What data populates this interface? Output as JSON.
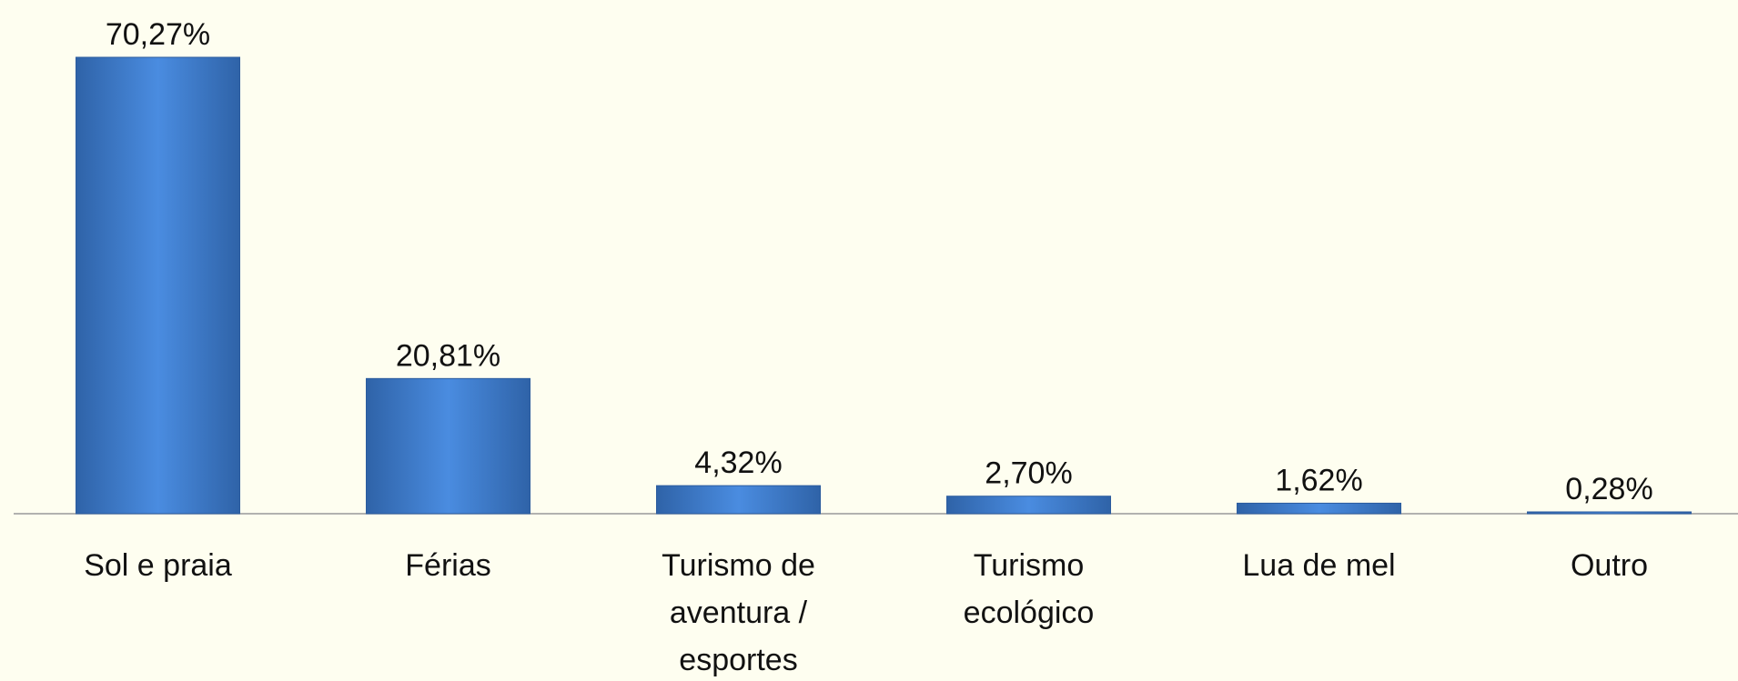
{
  "chart_data": {
    "type": "bar",
    "categories": [
      "Sol e praia",
      "Férias",
      "Turismo de aventura / esportes",
      "Turismo ecológico",
      "Lua de mel",
      "Outro"
    ],
    "values": [
      70.27,
      20.81,
      4.32,
      2.7,
      1.62,
      0.28
    ],
    "value_labels": [
      "70,27%",
      "20,81%",
      "4,32%",
      "2,70%",
      "1,62%",
      "0,28%"
    ],
    "color": "#3d7ccc"
  }
}
